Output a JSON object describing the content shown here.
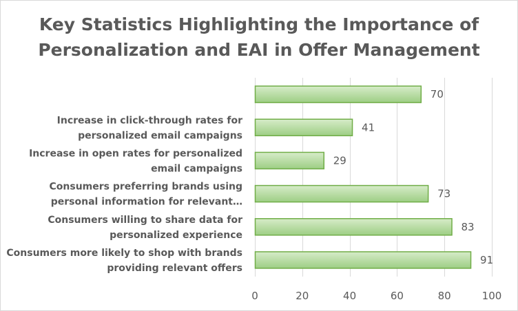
{
  "title_lines": [
    "Key Statistics Highlighting the Importance of",
    "Personalization and EAI in Offer Management"
  ],
  "chart_data": {
    "type": "bar",
    "orientation": "horizontal",
    "title": "Key Statistics Highlighting the Importance of Personalization and EAI in Offer Management",
    "categories": [
      [
        "Consumers more likely to shop with brands",
        "providing relevant offers"
      ],
      [
        "Consumers willing to share data for",
        "personalized experience"
      ],
      [
        "Consumers preferring brands using",
        "personal information for relevant…"
      ],
      [
        "Increase in open rates for personalized",
        "email campaigns"
      ],
      [
        "Increase in click-through rates for",
        "personalized email campaigns"
      ],
      [
        ""
      ]
    ],
    "values": [
      91,
      83,
      73,
      29,
      41,
      70
    ],
    "xlim": [
      0,
      100
    ],
    "xticks": [
      0,
      20,
      40,
      60,
      80,
      100
    ],
    "xlabel": "",
    "ylabel": "",
    "grid": "vertical",
    "legend": "none",
    "bar_fill_start": "#d7ecc9",
    "bar_fill_end": "#9dce84",
    "bar_stroke": "#70ad47",
    "grid_color": "#d9d9d9",
    "text_color": "#595959"
  }
}
